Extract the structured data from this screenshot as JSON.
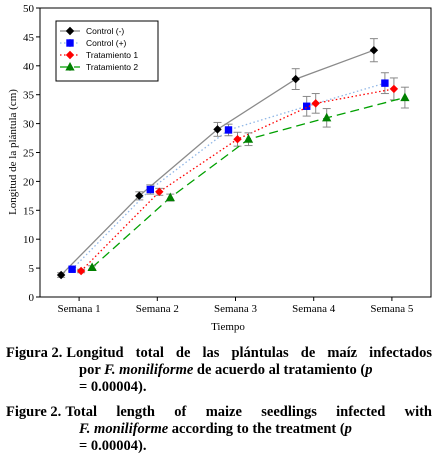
{
  "chart_data": {
    "type": "line",
    "categories": [
      "Semana 1",
      "Semana 2",
      "Semana 3",
      "Semana 4",
      "Semana 5"
    ],
    "xlabel": "Tiempo",
    "ylabel": "Longitud de la plántula (cm)",
    "ylim": [
      0,
      50
    ],
    "yticks": [
      0,
      5,
      10,
      15,
      20,
      25,
      30,
      35,
      40,
      45,
      50
    ],
    "grid": false,
    "legend_position": "top-left",
    "series": [
      {
        "name": "Control (-)",
        "color": "#000000",
        "line_color": "#8a8a8a",
        "dash": "solid",
        "marker": "diamond",
        "values": [
          3.8,
          17.5,
          29.0,
          37.7,
          42.7
        ],
        "errors": [
          0.4,
          0.7,
          1.2,
          1.8,
          2.0
        ]
      },
      {
        "name": "Control (+)",
        "color": "#0000ff",
        "line_color": "#8fb6e6",
        "dash": "dotted",
        "marker": "square",
        "values": [
          4.8,
          18.6,
          28.9,
          33.0,
          37.0
        ],
        "errors": [
          0.3,
          0.8,
          1.0,
          1.7,
          1.8
        ]
      },
      {
        "name": "Tratamiento 1",
        "color": "#ff0000",
        "line_color": "#ff0000",
        "dash": "dotted",
        "marker": "diamond",
        "values": [
          4.5,
          18.2,
          27.3,
          33.5,
          36.0
        ],
        "errors": [
          0.3,
          0.6,
          1.2,
          1.7,
          1.9
        ]
      },
      {
        "name": "Tratamiento 2",
        "color": "#008000",
        "line_color": "#00a000",
        "dash": "dashed",
        "marker": "triangle",
        "values": [
          5.1,
          17.2,
          27.3,
          31.0,
          34.5
        ],
        "errors": [
          0.3,
          0.6,
          1.1,
          1.6,
          1.8
        ]
      }
    ]
  },
  "caption_es": {
    "lead": "Figura 2.",
    "line1_rest": "Longitud total de las plántulas de maíz infectados",
    "line2_pre": "por ",
    "species": "F. moniliforme",
    "line2_post": " de acuerdo al tratamiento (",
    "p": "p",
    "line3": "= 0.00004)."
  },
  "caption_en": {
    "lead": "Figure 2.",
    "line1_rest": "Total length of maize seedlings infected with",
    "species": "F. moniliforme",
    "line2_post": " according to the treatment (",
    "p": "p",
    "line3": "= 0.00004)."
  }
}
